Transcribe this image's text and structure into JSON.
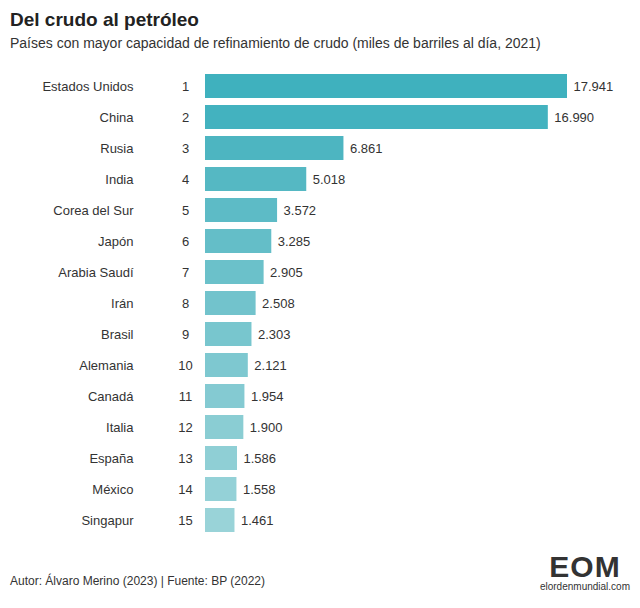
{
  "chart_data": {
    "type": "bar",
    "orientation": "horizontal",
    "title": "Del crudo al petróleo",
    "subtitle": "Países con mayor capacidad de refinamiento de crudo (miles de barriles al día, 2021)",
    "caption": "Autor: Álvaro Merino (2023) | Fuente: BP (2022)",
    "logo": "EOM",
    "logo_subtitle": "elordenmundial.com",
    "categories": [
      "Estados Unidos",
      "China",
      "Rusia",
      "India",
      "Corea del Sur",
      "Japón",
      "Arabia Saudí",
      "Irán",
      "Brasil",
      "Alemania",
      "Canadá",
      "Italia",
      "España",
      "México",
      "Singapur"
    ],
    "ranks": [
      1,
      2,
      3,
      4,
      5,
      6,
      7,
      8,
      9,
      10,
      11,
      12,
      13,
      14,
      15
    ],
    "values": [
      17941,
      16990,
      6861,
      5018,
      3572,
      3285,
      2905,
      2508,
      2303,
      2121,
      1954,
      1900,
      1586,
      1558,
      1461
    ],
    "value_labels": [
      "17.941",
      "16.990",
      "6.861",
      "5.018",
      "3.572",
      "3.285",
      "2.905",
      "2.508",
      "2.303",
      "2.121",
      "1.954",
      "1.900",
      "1.586",
      "1.558",
      "1.461"
    ],
    "colors": [
      "#3fb1be",
      "#43b2bf",
      "#4db5c1",
      "#55b8c3",
      "#5dbbc6",
      "#64bec8",
      "#6bc1ca",
      "#72c3cc",
      "#78c6ce",
      "#7ec8d0",
      "#84cad2",
      "#8acdd3",
      "#8fcfd5",
      "#94d1d7",
      "#99d3d8"
    ],
    "xlim": [
      0,
      17941
    ],
    "data_labels": true,
    "tick_labels": "y",
    "grid": false
  }
}
